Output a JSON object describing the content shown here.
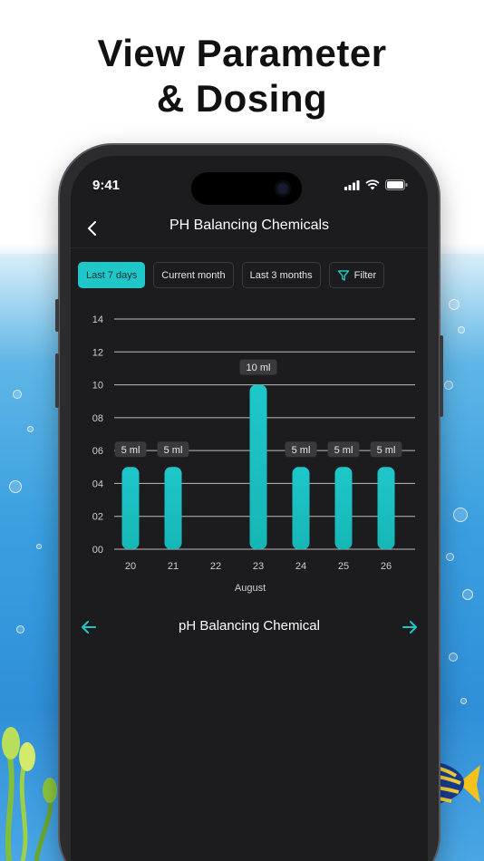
{
  "headline": {
    "line1": "View Parameter",
    "line2": "& Dosing"
  },
  "status": {
    "time": "9:41"
  },
  "nav": {
    "title": "PH Balancing Chemicals"
  },
  "filters": {
    "tabs": [
      {
        "label": "Last 7 days",
        "active": true
      },
      {
        "label": "Current month",
        "active": false
      },
      {
        "label": "Last 3 months",
        "active": false
      }
    ],
    "filter_label": "Filter"
  },
  "chart_data": {
    "type": "bar",
    "categories": [
      "20",
      "21",
      "22",
      "23",
      "24",
      "25",
      "26"
    ],
    "values": [
      5,
      5,
      0,
      10,
      5,
      5,
      5
    ],
    "data_labels": [
      "5 ml",
      "5 ml",
      "",
      "10 ml",
      "5 ml",
      "5 ml",
      "5 ml"
    ],
    "y_ticks": [
      "00",
      "02",
      "04",
      "06",
      "08",
      "10",
      "12",
      "14"
    ],
    "ylim": [
      0,
      14
    ],
    "xlabel": "August",
    "ylabel": "",
    "title": "",
    "grid": true,
    "bar_color_top": "#1fc7c9",
    "bar_color_bottom": "#16b6b6"
  },
  "pager": {
    "label": "pH Balancing Chemical"
  },
  "colors": {
    "accent": "#1fc7c9",
    "screen_bg": "#1c1c1e"
  }
}
